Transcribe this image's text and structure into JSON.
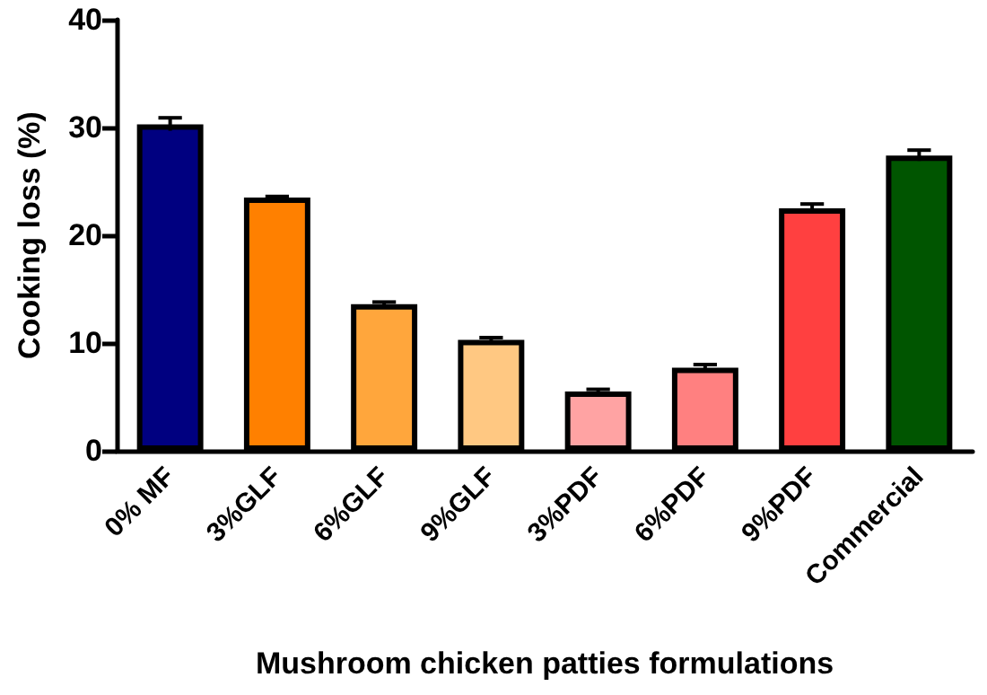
{
  "chart_data": {
    "type": "bar",
    "xlabel": "Mushroom chicken patties formulations",
    "ylabel": "Cooking loss (%)",
    "categories": [
      "0% MF",
      "3%GLF",
      "6%GLF",
      "9%GLF",
      "3%PDF",
      "6%PDF",
      "9%PDF",
      "Commercial"
    ],
    "values": [
      30.3,
      23.5,
      13.6,
      10.3,
      5.5,
      7.7,
      22.5,
      27.4
    ],
    "errors": [
      0.6,
      0.1,
      0.2,
      0.2,
      0.2,
      0.3,
      0.4,
      0.5
    ],
    "colors": [
      "#000080",
      "#ff8000",
      "#ffa63c",
      "#ffc882",
      "#ffa3a3",
      "#ff8080",
      "#ff4040",
      "#005500"
    ],
    "ylim": [
      0,
      40
    ],
    "yticks": [
      0,
      10,
      20,
      30,
      40
    ],
    "grid": false
  }
}
